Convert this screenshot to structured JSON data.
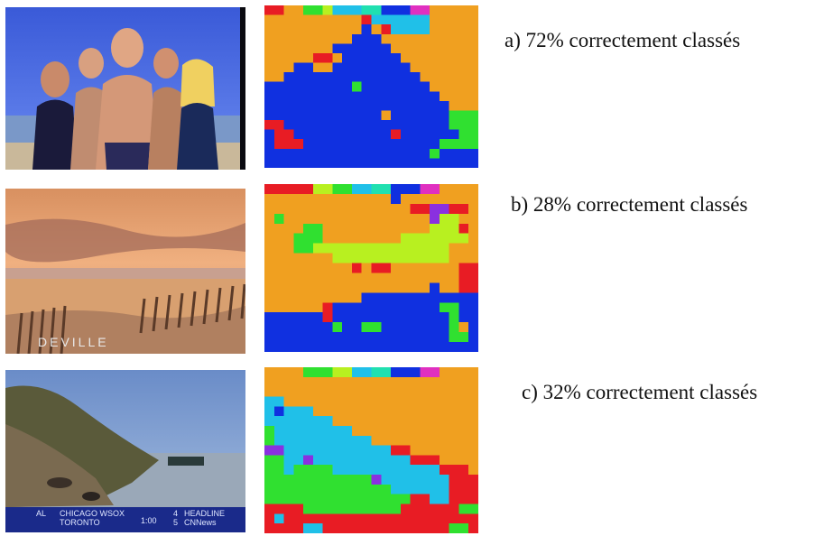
{
  "colors": {
    "orange": "#f0a020",
    "blue": "#1030e0",
    "red": "#e81c24",
    "green": "#30e030",
    "cyan": "#20c0e8",
    "yellowgreen": "#b8f020",
    "purple": "#8a30e0",
    "magenta": "#e030c0",
    "teal": "#20e0b0"
  },
  "examples": [
    {
      "label": "a) 72% correctement classés",
      "scene": "beach-people",
      "map_icon": "segmentation-map-a"
    },
    {
      "label": "b) 28% correctement classés",
      "scene": "sunset-beach",
      "watermark": "DEVILLE",
      "map_icon": "segmentation-map-b"
    },
    {
      "label": "c) 32% correctement classés",
      "scene": "river-shore",
      "ticker": {
        "left_code": "AL",
        "team1": "CHICAGO WSOX",
        "team2": "TORONTO",
        "time": "1:00",
        "score1": "4",
        "score2": "5",
        "brand1": "HEADLINE",
        "brand2": "CNNews"
      },
      "map_icon": "segmentation-map-c"
    }
  ]
}
